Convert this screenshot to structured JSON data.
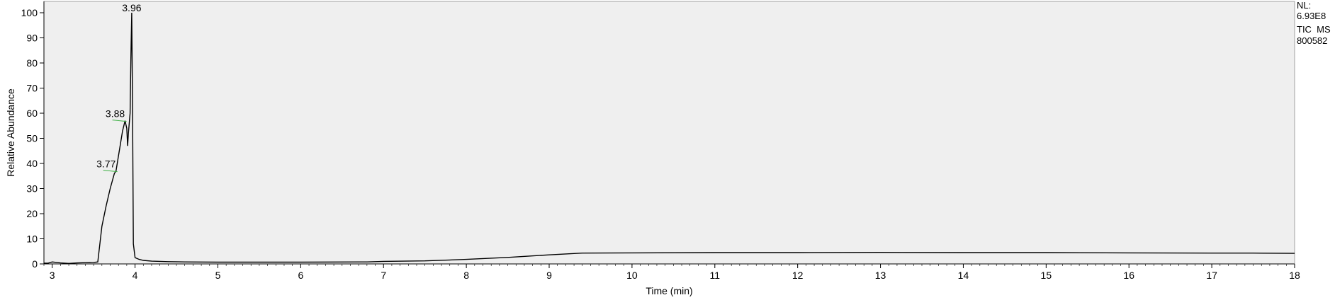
{
  "chart_data": {
    "type": "line",
    "title": "",
    "xlabel": "Time (min)",
    "ylabel": "Relative Abundance",
    "xlim": [
      2.9,
      18
    ],
    "ylim": [
      0,
      100
    ],
    "x_ticks": [
      3,
      4,
      5,
      6,
      7,
      8,
      9,
      10,
      11,
      12,
      13,
      14,
      15,
      16,
      17,
      18
    ],
    "y_ticks": [
      0,
      10,
      20,
      30,
      40,
      50,
      60,
      70,
      80,
      90,
      100
    ],
    "grid": false,
    "background": "#efefef",
    "line_color": "#000000",
    "series": [
      {
        "x": [
          2.9,
          2.95,
          3.0,
          3.1,
          3.2,
          3.3,
          3.4,
          3.5,
          3.55,
          3.6,
          3.65,
          3.7,
          3.75,
          3.77,
          3.8,
          3.82,
          3.85,
          3.88,
          3.9,
          3.91,
          3.92,
          3.94,
          3.95,
          3.96,
          3.97,
          3.98,
          4.0,
          4.05,
          4.1,
          4.2,
          4.4,
          4.6,
          5.0,
          6.0,
          6.8,
          7.0,
          7.5,
          8.0,
          8.5,
          9.0,
          9.4,
          10.0,
          11.0,
          12.0,
          13.0,
          14.0,
          15.0,
          16.0,
          17.0,
          17.5,
          18.0
        ],
        "y": [
          0.3,
          0.3,
          0.8,
          0.4,
          0.2,
          0.4,
          0.5,
          0.6,
          0.8,
          15,
          23,
          30,
          36,
          37,
          43,
          47,
          53,
          57,
          54,
          47,
          52,
          60,
          82,
          100,
          60,
          8,
          2.5,
          1.8,
          1.4,
          1.1,
          0.9,
          0.8,
          0.7,
          0.7,
          0.8,
          1.0,
          1.2,
          1.8,
          2.6,
          3.6,
          4.3,
          4.4,
          4.5,
          4.5,
          4.6,
          4.5,
          4.5,
          4.4,
          4.3,
          4.3,
          4.2
        ]
      }
    ],
    "peak_labels": [
      {
        "text": "3.96",
        "x": 3.96,
        "y": 100
      },
      {
        "text": "3.88",
        "x": 3.88,
        "y": 57
      },
      {
        "text": "3.77",
        "x": 3.77,
        "y": 37
      }
    ],
    "info_lines": [
      "NL:",
      "6.93E8",
      "TIC  MS",
      "800582"
    ]
  }
}
